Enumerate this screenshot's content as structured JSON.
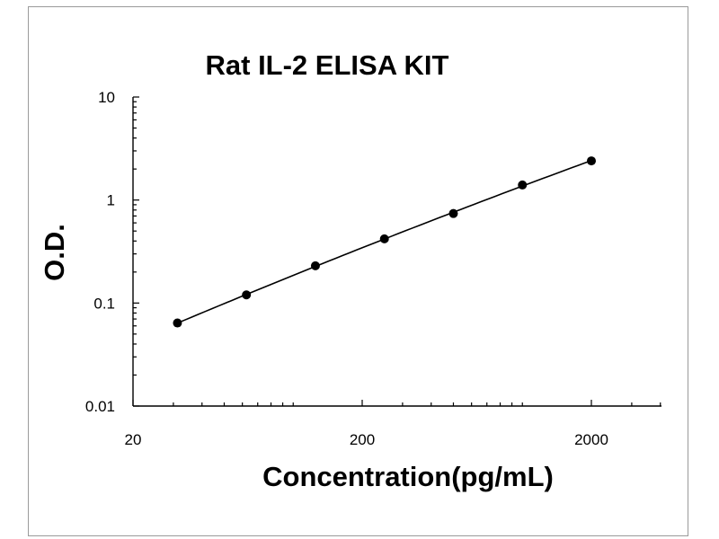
{
  "chart_data": {
    "type": "scatter",
    "title": "Rat IL-2 ELISA KIT",
    "xlabel": "Concentration(pg/mL)",
    "ylabel": "O.D.",
    "x_scale": "log",
    "y_scale": "log",
    "xlim": [
      20,
      5000
    ],
    "ylim": [
      0.01,
      10
    ],
    "x_ticks": [
      "20",
      "200",
      "2000"
    ],
    "y_ticks": [
      "10",
      "1",
      "0.1",
      "0.01"
    ],
    "grid": false,
    "legend": "none",
    "series": [
      {
        "x": [
          31.25,
          62.5,
          125,
          250,
          500,
          1000,
          2000
        ],
        "y": [
          0.064,
          0.12,
          0.23,
          0.42,
          0.74,
          1.4,
          2.4
        ],
        "fit_line": true
      }
    ]
  }
}
